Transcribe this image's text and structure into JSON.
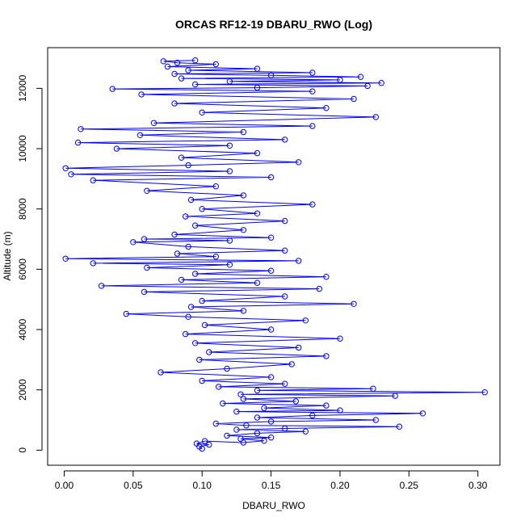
{
  "chart_data": {
    "type": "scatter",
    "title": "ORCAS RF12-19 DBARU_RWO (Log)",
    "xlabel": "DBARU_RWO",
    "ylabel": "Altitude (m)",
    "xlim": [
      -0.012,
      0.316
    ],
    "ylim": [
      -500,
      13350
    ],
    "xticks": [
      0.0,
      0.05,
      0.1,
      0.15,
      0.2,
      0.25,
      0.3
    ],
    "xtick_labels": [
      "0.00",
      "0.05",
      "0.10",
      "0.15",
      "0.20",
      "0.25",
      "0.30"
    ],
    "yticks": [
      0,
      2000,
      4000,
      6000,
      8000,
      10000,
      12000
    ],
    "ytick_labels": [
      "0",
      "2000",
      "4000",
      "6000",
      "8000",
      "10000",
      "12000"
    ],
    "grid": false,
    "legend": "none",
    "marker": "open-circle",
    "connected": true,
    "color": "#0000ff",
    "series": [
      {
        "points": [
          [
            0.1,
            50
          ],
          [
            0.098,
            120
          ],
          [
            0.105,
            180
          ],
          [
            0.096,
            220
          ],
          [
            0.102,
            300
          ],
          [
            0.13,
            250
          ],
          [
            0.145,
            310
          ],
          [
            0.128,
            380
          ],
          [
            0.15,
            420
          ],
          [
            0.118,
            480
          ],
          [
            0.14,
            560
          ],
          [
            0.175,
            620
          ],
          [
            0.125,
            680
          ],
          [
            0.16,
            720
          ],
          [
            0.243,
            780
          ],
          [
            0.132,
            820
          ],
          [
            0.11,
            880
          ],
          [
            0.15,
            950
          ],
          [
            0.226,
            1000
          ],
          [
            0.14,
            1080
          ],
          [
            0.18,
            1150
          ],
          [
            0.26,
            1220
          ],
          [
            0.125,
            1280
          ],
          [
            0.2,
            1320
          ],
          [
            0.145,
            1400
          ],
          [
            0.19,
            1480
          ],
          [
            0.115,
            1550
          ],
          [
            0.168,
            1620
          ],
          [
            0.13,
            1700
          ],
          [
            0.24,
            1800
          ],
          [
            0.128,
            1850
          ],
          [
            0.305,
            1920
          ],
          [
            0.14,
            1980
          ],
          [
            0.224,
            2040
          ],
          [
            0.112,
            2100
          ],
          [
            0.16,
            2200
          ],
          [
            0.1,
            2300
          ],
          [
            0.15,
            2420
          ],
          [
            0.07,
            2580
          ],
          [
            0.118,
            2700
          ],
          [
            0.165,
            2850
          ],
          [
            0.098,
            3000
          ],
          [
            0.19,
            3120
          ],
          [
            0.105,
            3250
          ],
          [
            0.17,
            3400
          ],
          [
            0.095,
            3550
          ],
          [
            0.2,
            3700
          ],
          [
            0.088,
            3850
          ],
          [
            0.15,
            4000
          ],
          [
            0.102,
            4150
          ],
          [
            0.175,
            4300
          ],
          [
            0.09,
            4420
          ],
          [
            0.045,
            4520
          ],
          [
            0.13,
            4620
          ],
          [
            0.092,
            4750
          ],
          [
            0.21,
            4850
          ],
          [
            0.1,
            4950
          ],
          [
            0.16,
            5100
          ],
          [
            0.058,
            5250
          ],
          [
            0.185,
            5350
          ],
          [
            0.027,
            5450
          ],
          [
            0.14,
            5550
          ],
          [
            0.085,
            5650
          ],
          [
            0.19,
            5750
          ],
          [
            0.095,
            5850
          ],
          [
            0.15,
            5950
          ],
          [
            0.06,
            6050
          ],
          [
            0.12,
            6150
          ],
          [
            0.021,
            6200
          ],
          [
            0.17,
            6280
          ],
          [
            0.001,
            6350
          ],
          [
            0.11,
            6420
          ],
          [
            0.082,
            6520
          ],
          [
            0.16,
            6620
          ],
          [
            0.09,
            6750
          ],
          [
            0.05,
            6900
          ],
          [
            0.12,
            6950
          ],
          [
            0.058,
            7000
          ],
          [
            0.15,
            7050
          ],
          [
            0.08,
            7150
          ],
          [
            0.13,
            7300
          ],
          [
            0.095,
            7450
          ],
          [
            0.16,
            7600
          ],
          [
            0.088,
            7750
          ],
          [
            0.14,
            7850
          ],
          [
            0.1,
            8000
          ],
          [
            0.18,
            8150
          ],
          [
            0.092,
            8300
          ],
          [
            0.13,
            8450
          ],
          [
            0.06,
            8600
          ],
          [
            0.11,
            8750
          ],
          [
            0.021,
            8950
          ],
          [
            0.15,
            9050
          ],
          [
            0.005,
            9150
          ],
          [
            0.12,
            9250
          ],
          [
            0.001,
            9350
          ],
          [
            0.09,
            9450
          ],
          [
            0.17,
            9550
          ],
          [
            0.085,
            9700
          ],
          [
            0.14,
            9850
          ],
          [
            0.038,
            10000
          ],
          [
            0.12,
            10100
          ],
          [
            0.01,
            10200
          ],
          [
            0.16,
            10300
          ],
          [
            0.055,
            10450
          ],
          [
            0.13,
            10550
          ],
          [
            0.012,
            10650
          ],
          [
            0.18,
            10750
          ],
          [
            0.065,
            10850
          ],
          [
            0.226,
            11050
          ],
          [
            0.1,
            11200
          ],
          [
            0.19,
            11350
          ],
          [
            0.08,
            11500
          ],
          [
            0.21,
            11650
          ],
          [
            0.056,
            11800
          ],
          [
            0.18,
            11900
          ],
          [
            0.035,
            11980
          ],
          [
            0.14,
            12020
          ],
          [
            0.22,
            12080
          ],
          [
            0.095,
            12130
          ],
          [
            0.23,
            12180
          ],
          [
            0.12,
            12230
          ],
          [
            0.2,
            12280
          ],
          [
            0.085,
            12330
          ],
          [
            0.215,
            12380
          ],
          [
            0.15,
            12430
          ],
          [
            0.08,
            12480
          ],
          [
            0.18,
            12520
          ],
          [
            0.09,
            12600
          ],
          [
            0.14,
            12650
          ],
          [
            0.075,
            12720
          ],
          [
            0.11,
            12800
          ],
          [
            0.082,
            12850
          ],
          [
            0.072,
            12900
          ],
          [
            0.095,
            12930
          ]
        ]
      }
    ]
  }
}
